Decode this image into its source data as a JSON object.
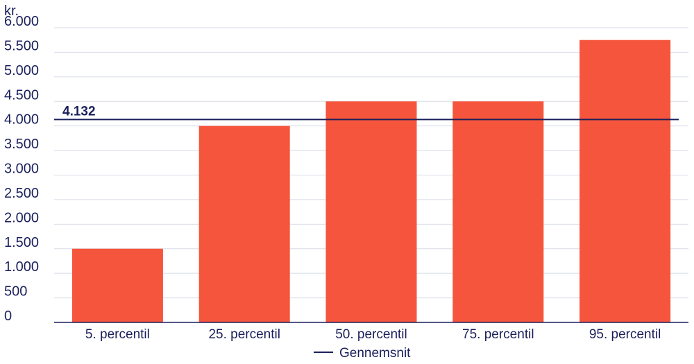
{
  "chart_data": {
    "type": "bar",
    "ylabel": "kr.",
    "categories": [
      "5. percentil",
      "25. percentil",
      "50. percentil",
      "75. percentil",
      "95. percentil"
    ],
    "values": [
      1500,
      4000,
      4500,
      4500,
      5750
    ],
    "ylim": [
      0,
      6000
    ],
    "yticks": [
      0,
      500,
      1000,
      1500,
      2000,
      2500,
      3000,
      3500,
      4000,
      4500,
      5000,
      5500,
      6000
    ],
    "ytick_labels": [
      "0",
      "500",
      "1.000",
      "1.500",
      "2.000",
      "2.500",
      "3.000",
      "3.500",
      "4.000",
      "4.500",
      "5.000",
      "5.500",
      "6.000"
    ],
    "grid": true,
    "average": {
      "name": "Gennemsnit",
      "value": 4132,
      "label": "4.132"
    },
    "legend": {
      "position": "bottom-center",
      "entries": [
        "Gennemsnit"
      ]
    },
    "colors": {
      "bar": "#f5553c",
      "average_line": "#1a1f5c",
      "text": "#1a1f5c",
      "grid": "#d8dbe6",
      "axis": "#1a1f5c"
    }
  }
}
